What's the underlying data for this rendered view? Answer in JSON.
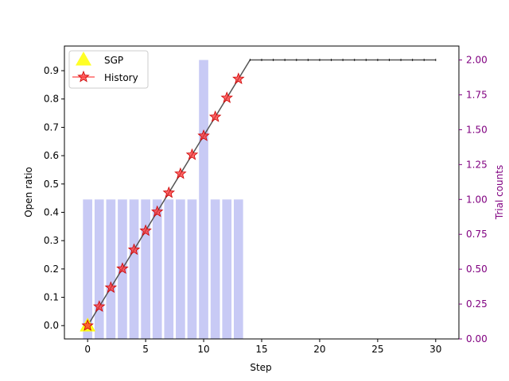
{
  "chart_data": {
    "type": "line",
    "title": "",
    "xlabel": "Step",
    "ylabel": "Open ratio",
    "y2label": "Trial counts",
    "xlim": [
      -2,
      32
    ],
    "ylim": [
      -0.047,
      0.987
    ],
    "y2lim": [
      0,
      2.1
    ],
    "xticks": [
      "0",
      "5",
      "10",
      "15",
      "20",
      "25",
      "30"
    ],
    "xtick_values": [
      0,
      5,
      10,
      15,
      20,
      25,
      30
    ],
    "yticks": [
      "0.0",
      "0.1",
      "0.2",
      "0.3",
      "0.4",
      "0.5",
      "0.6",
      "0.7",
      "0.8",
      "0.9"
    ],
    "ytick_values": [
      0.0,
      0.1,
      0.2,
      0.3,
      0.4,
      0.5,
      0.6,
      0.7,
      0.8,
      0.9
    ],
    "y2ticks": [
      "0.00",
      "0.25",
      "0.50",
      "0.75",
      "1.00",
      "1.25",
      "1.50",
      "1.75",
      "2.00"
    ],
    "y2tick_values": [
      0.0,
      0.25,
      0.5,
      0.75,
      1.0,
      1.25,
      1.5,
      1.75,
      2.0
    ],
    "legend_position": "top-left",
    "grid": false,
    "colors": {
      "line": "#555555",
      "history": "#ff3333",
      "history_edge": "#cc0000",
      "sgp": "#ffff00",
      "bars": "#c8caf5",
      "right_axis": "#800080"
    },
    "trial_counts": {
      "name": "Trial counts",
      "x": [
        0,
        1,
        2,
        3,
        4,
        5,
        6,
        7,
        8,
        9,
        10,
        11,
        12,
        13
      ],
      "values": [
        1,
        1,
        1,
        1,
        1,
        1,
        1,
        1,
        1,
        1,
        2,
        1,
        1,
        1
      ]
    },
    "line": {
      "x": [
        0,
        1,
        2,
        3,
        4,
        5,
        6,
        7,
        8,
        9,
        10,
        11,
        12,
        13,
        14,
        15,
        16,
        17,
        18,
        19,
        20,
        21,
        22,
        23,
        24,
        25,
        26,
        27,
        28,
        29,
        30
      ],
      "values": [
        0.0,
        0.067,
        0.134,
        0.201,
        0.268,
        0.335,
        0.402,
        0.469,
        0.536,
        0.603,
        0.67,
        0.737,
        0.804,
        0.871,
        0.938,
        0.938,
        0.938,
        0.938,
        0.938,
        0.938,
        0.938,
        0.938,
        0.938,
        0.938,
        0.938,
        0.938,
        0.938,
        0.938,
        0.938,
        0.938,
        0.938
      ]
    },
    "series": [
      {
        "name": "SGP",
        "marker": "triangle",
        "x": [
          0
        ],
        "values": [
          0.0
        ]
      },
      {
        "name": "History",
        "marker": "star",
        "x": [
          0,
          1,
          2,
          3,
          4,
          5,
          6,
          7,
          8,
          9,
          10,
          11,
          12,
          13
        ],
        "values": [
          0.0,
          0.067,
          0.134,
          0.201,
          0.268,
          0.335,
          0.402,
          0.469,
          0.536,
          0.603,
          0.67,
          0.737,
          0.804,
          0.871
        ]
      }
    ]
  }
}
